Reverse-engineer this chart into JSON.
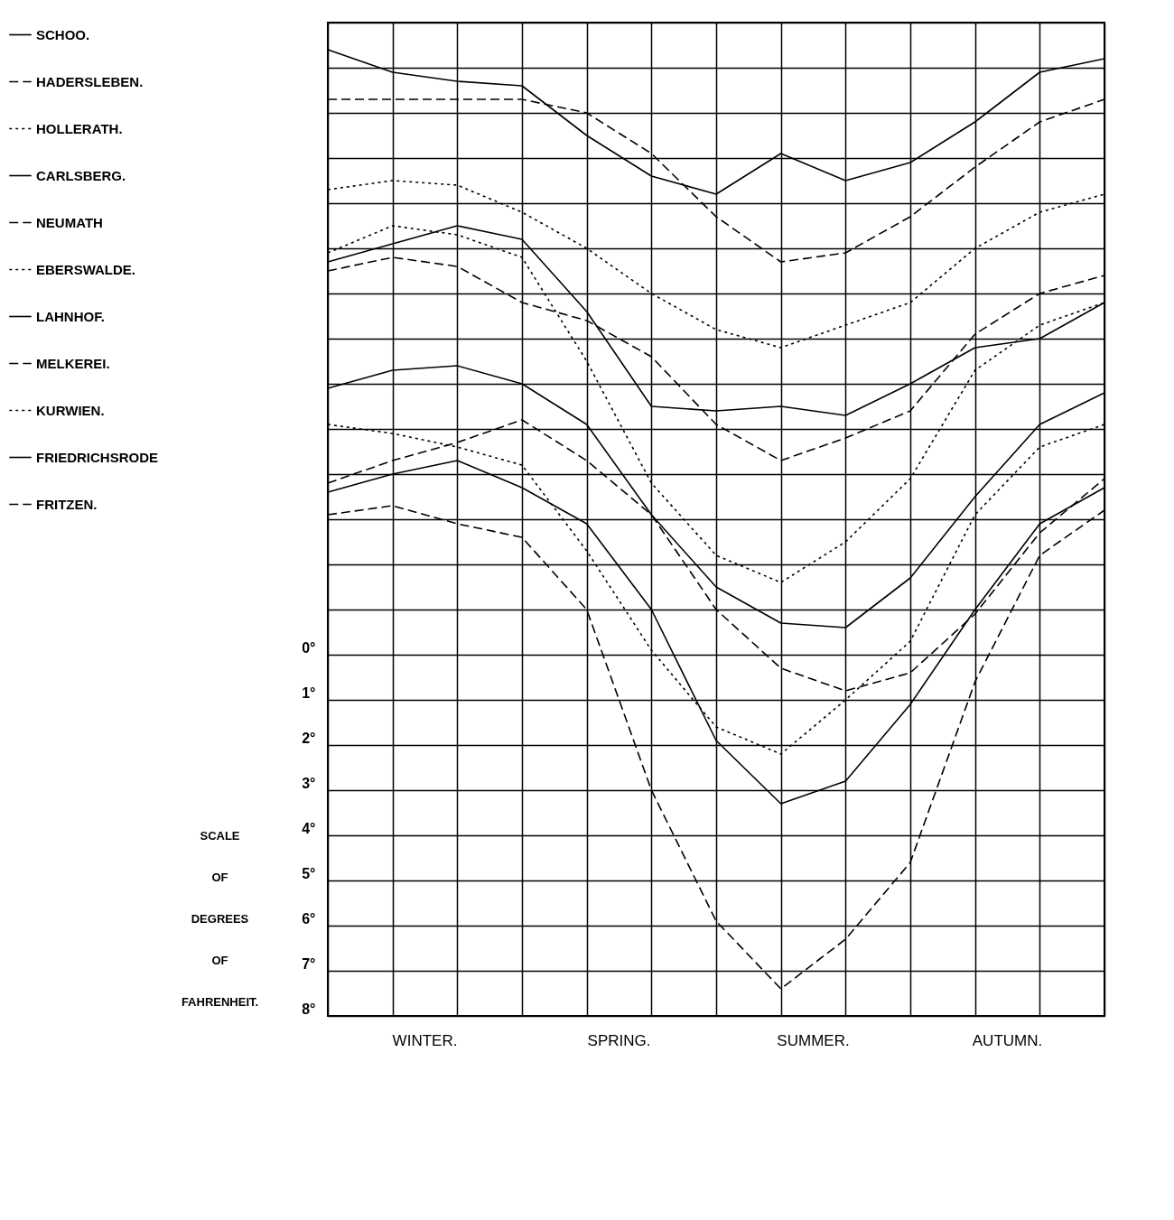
{
  "chart_data": {
    "type": "line",
    "ylabel": "SCALE OF DEGREES OF FAHRENHEIT.",
    "categories": [
      null,
      null,
      null,
      null,
      null,
      null,
      null,
      null,
      null,
      null,
      null,
      null,
      null
    ],
    "annotations": [
      "WINTER.",
      "SPRING.",
      "SUMMER.",
      "AUTUMN."
    ],
    "ylim": [
      8,
      -14
    ],
    "yticks": [
      {
        "value": -14,
        "label": null
      },
      {
        "value": -13,
        "label": null
      },
      {
        "value": -12,
        "label": null
      },
      {
        "value": -11,
        "label": null
      },
      {
        "value": -10,
        "label": null
      },
      {
        "value": -9,
        "label": null
      },
      {
        "value": -8,
        "label": null
      },
      {
        "value": -7,
        "label": null
      },
      {
        "value": -6,
        "label": null
      },
      {
        "value": -5,
        "label": null
      },
      {
        "value": -4,
        "label": null
      },
      {
        "value": -3,
        "label": null
      },
      {
        "value": -2,
        "label": null
      },
      {
        "value": -1,
        "label": null
      },
      {
        "value": 0,
        "label": "0°"
      },
      {
        "value": 1,
        "label": "1°"
      },
      {
        "value": 2,
        "label": "2°"
      },
      {
        "value": 3,
        "label": "3°"
      },
      {
        "value": 4,
        "label": "4°"
      },
      {
        "value": 5,
        "label": "5°"
      },
      {
        "value": 6,
        "label": "6°"
      },
      {
        "value": 7,
        "label": "7°"
      },
      {
        "value": 8,
        "label": "8°"
      }
    ],
    "grid": true,
    "legend": "left",
    "series": [
      {
        "name": "SCHOO.",
        "color": "#000000",
        "line_style": "solid",
        "values": [
          -13.4,
          -12.9,
          -12.7,
          -12.6,
          -11.5,
          -10.6,
          -10.2,
          -11.1,
          -10.5,
          -10.9,
          -11.8,
          -12.9,
          -13.2
        ]
      },
      {
        "name": "HADERSLEBEN.",
        "color": "#000000",
        "line_style": "dashed",
        "values": [
          -12.3,
          -12.3,
          -12.3,
          -12.3,
          -12.0,
          -11.1,
          -9.7,
          -8.7,
          -8.9,
          -9.7,
          -10.8,
          -11.8,
          -12.3
        ]
      },
      {
        "name": "HOLLERATH.",
        "color": "#000000",
        "line_style": "dotted",
        "values": [
          -10.3,
          -10.5,
          -10.4,
          -9.8,
          -9.0,
          -8.0,
          -7.2,
          -6.8,
          -7.3,
          -7.8,
          -9.0,
          -9.8,
          -10.2
        ]
      },
      {
        "name": "CARLSBERG.",
        "color": "#000000",
        "line_style": "solid",
        "values": [
          -8.7,
          -9.1,
          -9.5,
          -9.2,
          -7.6,
          -5.5,
          -5.4,
          -5.5,
          -5.3,
          -6.0,
          -6.8,
          -7.0,
          -7.8
        ]
      },
      {
        "name": "NEUMATH",
        "color": "#000000",
        "line_style": "dashed",
        "values": [
          -8.5,
          -8.8,
          -8.6,
          -7.8,
          -7.4,
          -6.6,
          -5.1,
          -4.3,
          -4.8,
          -5.4,
          -7.1,
          -8.0,
          -8.4
        ]
      },
      {
        "name": "EBERSWALDE.",
        "color": "#000000",
        "line_style": "dotted",
        "values": [
          -8.9,
          -9.5,
          -9.3,
          -8.8,
          -6.5,
          -3.8,
          -2.2,
          -1.6,
          -2.5,
          -3.9,
          -6.3,
          -7.3,
          -7.8
        ]
      },
      {
        "name": "LAHNHOF.",
        "color": "#000000",
        "line_style": "solid",
        "values": [
          -5.9,
          -6.3,
          -6.4,
          -6.0,
          -5.1,
          -3.1,
          -1.5,
          -0.7,
          -0.6,
          -1.7,
          -3.5,
          -5.1,
          -5.8
        ]
      },
      {
        "name": "MELKEREI.",
        "color": "#000000",
        "line_style": "dashed",
        "values": [
          -3.8,
          -4.3,
          -4.7,
          -5.2,
          -4.3,
          -3.1,
          -1.0,
          0.3,
          0.8,
          0.4,
          -0.9,
          -2.7,
          -3.9
        ]
      },
      {
        "name": "KURWIEN.",
        "color": "#000000",
        "line_style": "dotted",
        "values": [
          -5.1,
          -4.9,
          -4.6,
          -4.2,
          -2.3,
          -0.1,
          1.6,
          2.2,
          1.0,
          -0.3,
          -3.1,
          -4.6,
          -5.1
        ]
      },
      {
        "name": "FRIEDRICHSRODE",
        "color": "#000000",
        "line_style": "solid",
        "values": [
          -3.6,
          -4.0,
          -4.3,
          -3.7,
          -2.9,
          -1.0,
          1.9,
          3.3,
          2.8,
          1.1,
          -1.0,
          -2.9,
          -3.7
        ]
      },
      {
        "name": "FRITZEN.",
        "color": "#000000",
        "line_style": "dashed",
        "values": [
          -3.1,
          -3.3,
          -2.9,
          -2.6,
          -1.0,
          3.0,
          5.9,
          7.4,
          6.3,
          4.6,
          0.6,
          -2.2,
          -3.2
        ]
      }
    ]
  }
}
